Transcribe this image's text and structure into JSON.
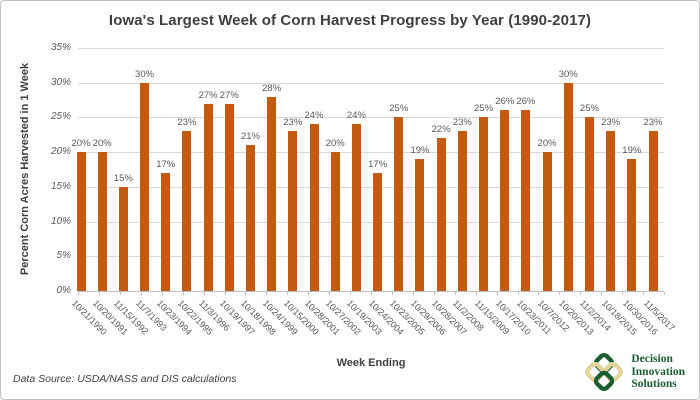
{
  "chart_data": {
    "type": "bar",
    "title": "Iowa's Largest Week of Corn Harvest Progress by Year (1990-2017)",
    "xlabel": "Week Ending",
    "ylabel": "Percent Corn Acres Harvested in 1 Week",
    "ylim": [
      0,
      35
    ],
    "ytick_step": 5,
    "ytick_labels": [
      "0%",
      "5%",
      "10%",
      "15%",
      "20%",
      "25%",
      "30%",
      "35%"
    ],
    "grid": true,
    "legend": "none",
    "bar_color": "#c55a11",
    "value_label_color": "#595959",
    "value_label_suffix": "%",
    "categories": [
      "10/21/1990",
      "10/20/1991",
      "11/15/1992",
      "11/7/1993",
      "10/23/1994",
      "10/22/1995",
      "11/3/1996",
      "10/19/1997",
      "10/18/1998",
      "10/24/1999",
      "10/15/2000",
      "10/28/2001",
      "10/27/2002",
      "10/19/2003",
      "10/24/2004",
      "10/23/2005",
      "10/29/2006",
      "10/28/2007",
      "11/2/2008",
      "11/15/2009",
      "10/17/2010",
      "10/23/2011",
      "10/7/2012",
      "10/20/2013",
      "11/2/2014",
      "10/18/2015",
      "10/30/2016",
      "11/5/2017"
    ],
    "values": [
      20,
      20,
      15,
      30,
      17,
      23,
      27,
      27,
      21,
      28,
      23,
      24,
      20,
      24,
      17,
      25,
      19,
      22,
      23,
      25,
      26,
      26,
      20,
      30,
      25,
      23,
      19,
      23
    ]
  },
  "footer": {
    "source_note": "Data Source: USDA/NASS and DIS calculations"
  },
  "logo": {
    "lines": [
      "Decision",
      "Innovation",
      "Solutions"
    ],
    "green": "#1b5e34",
    "cream": "#e3d49c"
  }
}
